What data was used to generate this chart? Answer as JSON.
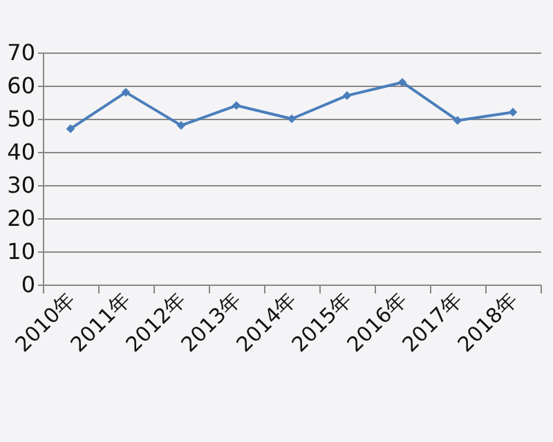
{
  "chart_data": {
    "type": "line",
    "categories": [
      "2010年",
      "2011年",
      "2012年",
      "2013年",
      "2014年",
      "2015年",
      "2016年",
      "2017年",
      "2018年"
    ],
    "series": [
      {
        "color": "#4a7ebb",
        "values": [
          47,
          58,
          48,
          54,
          50,
          57,
          61,
          49.5,
          52
        ]
      }
    ],
    "ylim": [
      0,
      70
    ],
    "yticks": [
      0,
      10,
      20,
      30,
      40,
      50,
      60,
      70
    ],
    "grid": "y",
    "marker": "diamond",
    "line_style": "solid"
  }
}
